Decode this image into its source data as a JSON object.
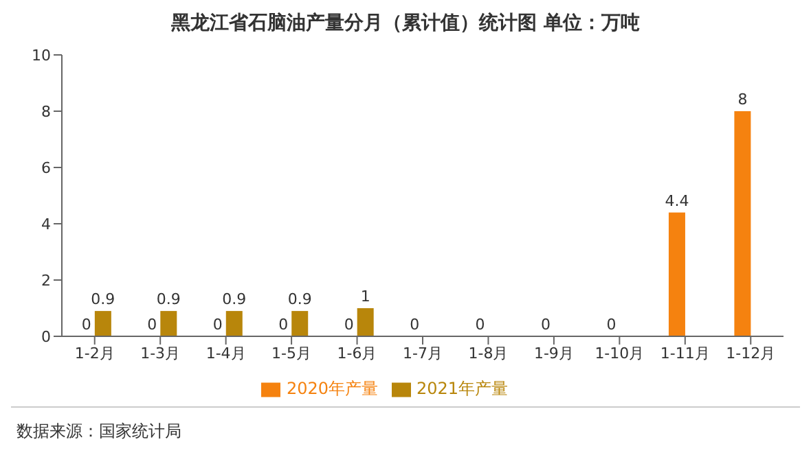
{
  "chart_data": {
    "type": "bar",
    "title": "黑龙江省石脑油产量分月（累计值）统计图 单位：万吨",
    "categories": [
      "1-2月",
      "1-3月",
      "1-4月",
      "1-5月",
      "1-6月",
      "1-7月",
      "1-8月",
      "1-9月",
      "1-10月",
      "1-11月",
      "1-12月"
    ],
    "series": [
      {
        "name": "2020年产量",
        "color": "#f5820f",
        "values": [
          0,
          0,
          0,
          0,
          0,
          0,
          0,
          0,
          0,
          4.4,
          8
        ]
      },
      {
        "name": "2021年产量",
        "color": "#b8860b",
        "values": [
          0.9,
          0.9,
          0.9,
          0.9,
          1,
          null,
          null,
          null,
          null,
          null,
          null
        ]
      }
    ],
    "ylim": [
      0,
      10
    ],
    "yticks": [
      0,
      2,
      4,
      6,
      8,
      10
    ],
    "grid": false,
    "legend": "bottom",
    "data_labels": true,
    "annotations": [
      "数据来源：国家统计局"
    ]
  }
}
